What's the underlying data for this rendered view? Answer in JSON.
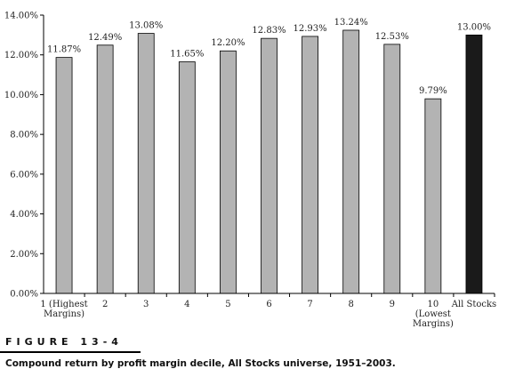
{
  "chart_data": {
    "type": "bar",
    "categories": [
      [
        "1 (Highest",
        "Margins)"
      ],
      [
        "2"
      ],
      [
        "3"
      ],
      [
        "4"
      ],
      [
        "5"
      ],
      [
        "6"
      ],
      [
        "7"
      ],
      [
        "8"
      ],
      [
        "9"
      ],
      [
        "10",
        "(Lowest",
        "Margins)"
      ],
      [
        "All Stocks"
      ]
    ],
    "values": [
      11.87,
      12.49,
      13.08,
      11.65,
      12.2,
      12.83,
      12.93,
      13.24,
      12.53,
      9.79,
      13.0
    ],
    "value_labels": [
      "11.87%",
      "12.49%",
      "13.08%",
      "11.65%",
      "12.20%",
      "12.83%",
      "12.93%",
      "13.24%",
      "12.53%",
      "9.79%",
      "13.00%"
    ],
    "yticks": [
      "0.00%",
      "2.00%",
      "4.00%",
      "6.00%",
      "8.00%",
      "10.00%",
      "12.00%",
      "14.00%"
    ],
    "ylim": [
      0,
      14
    ],
    "colors": {
      "bar": "#b3b3b3",
      "highlight_bar": "#1a1a1a",
      "axis": "#000000"
    },
    "highlight_index": 10
  },
  "figure_label": "FIGURE 13-4",
  "caption": "Compound return by profit margin decile, All Stocks universe, 1951–2003."
}
